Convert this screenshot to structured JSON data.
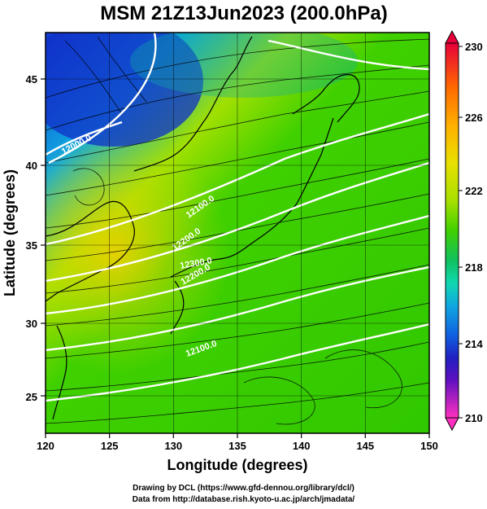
{
  "title": "MSM 21Z13Jun2023 (200.0hPa)",
  "x_axis": {
    "label": "Longitude (degrees)",
    "ticks": [
      "120",
      "125",
      "130",
      "135",
      "140",
      "145",
      "150"
    ]
  },
  "y_axis": {
    "label": "Latitude  (degrees)",
    "ticks": [
      "25",
      "30",
      "35",
      "40",
      "45"
    ]
  },
  "colorbar": {
    "labels": [
      "230",
      "226",
      "222",
      "218",
      "214",
      "210"
    ],
    "colors": [
      "#e8003a",
      "#ff6a00",
      "#ffb000",
      "#e8e000",
      "#a8e000",
      "#40d000",
      "#10c060",
      "#10d8b0",
      "#10a8e0",
      "#1060e0",
      "#2020c0",
      "#6010c0",
      "#c000c0",
      "#ff30c0"
    ]
  },
  "contour_labels": [
    "12000.0",
    "12100.0",
    "12200.0",
    "12300.0",
    "12200.0",
    "12100.0"
  ],
  "credits": {
    "line1": "Drawing by DCL (https://www.gfd-dennou.org/library/dcl/)",
    "line2": "Data from http://database.rish.kyoto-u.ac.jp/arch/jmadata/"
  },
  "icons": {
    "colorbar_top": "triangle-up-icon",
    "colorbar_bottom": "triangle-down-icon"
  }
}
